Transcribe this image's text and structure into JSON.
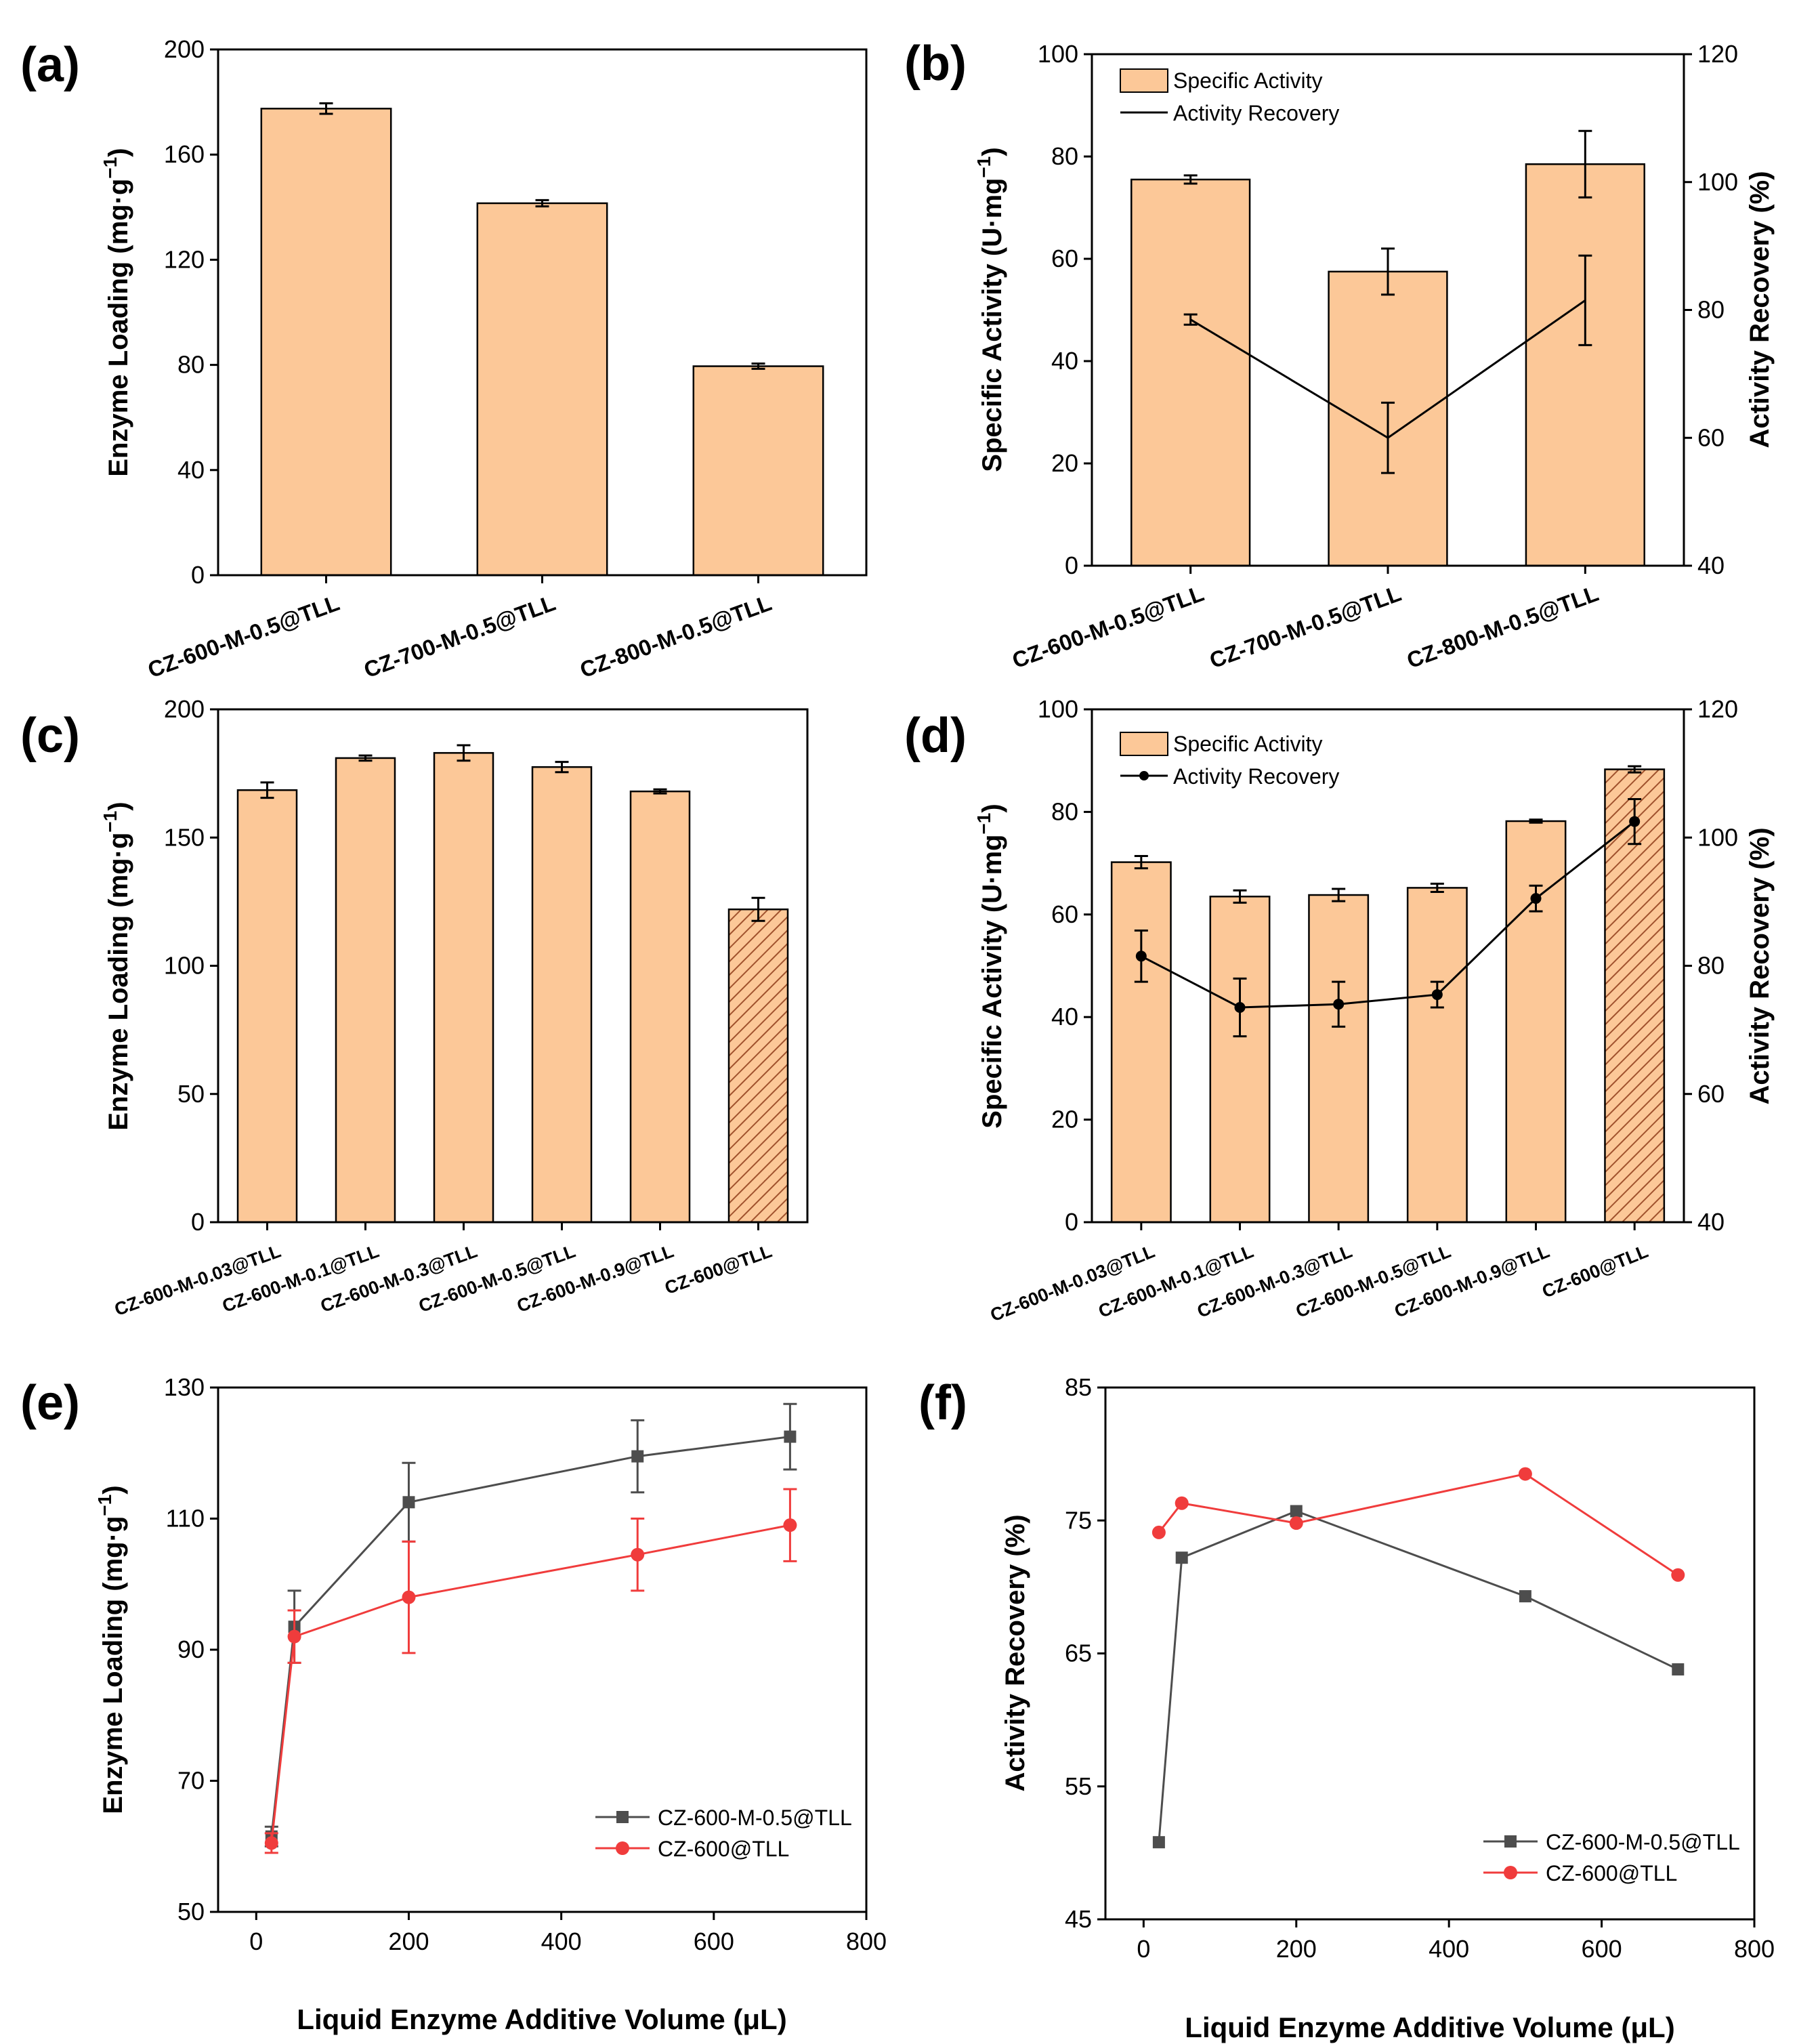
{
  "colors": {
    "bar_fill": "#fcc898",
    "bar_stroke": "#000000",
    "series_gray": "#4d4d4d",
    "series_red": "#f03c3c",
    "line_black": "#000000"
  },
  "chart_data": [
    {
      "panel": "(a)",
      "type": "bar",
      "categories": [
        "CZ-600-M-0.5@TLL",
        "CZ-700-M-0.5@TLL",
        "CZ-800-M-0.5@TLL"
      ],
      "values": [
        177.5,
        141.5,
        79.5
      ],
      "errors": [
        2.0,
        1.2,
        1.0
      ],
      "ylabel": "Enzyme Loading (mg·g⁻¹)",
      "ylim": [
        0,
        200
      ],
      "yticks": [
        "0",
        "40",
        "80",
        "120",
        "160",
        "200"
      ]
    },
    {
      "panel": "(b)",
      "type": "bar",
      "categories": [
        "CZ-600-M-0.5@TLL",
        "CZ-700-M-0.5@TLL",
        "CZ-800-M-0.5@TLL"
      ],
      "series": [
        {
          "name": "Specific Activity",
          "kind": "bar",
          "axis": "left",
          "values": [
            75.5,
            57.5,
            78.5
          ],
          "errors": [
            0.8,
            4.5,
            6.5
          ]
        },
        {
          "name": "Activity Recovery",
          "kind": "line",
          "axis": "right",
          "values": [
            78.5,
            60.0,
            81.5
          ],
          "errors": [
            0.8,
            5.5,
            7.0
          ]
        }
      ],
      "ylabel": "Specific Activity (U·mg⁻¹)",
      "ylabel_right": "Activity Recovery (%)",
      "ylim": [
        0,
        100
      ],
      "ylim_right": [
        40,
        120
      ],
      "yticks": [
        "0",
        "20",
        "40",
        "60",
        "80",
        "100"
      ],
      "yticks_right": [
        "40",
        "60",
        "80",
        "100",
        "120"
      ]
    },
    {
      "panel": "(c)",
      "type": "bar",
      "categories": [
        "CZ-600-M-0.03@TLL",
        "CZ-600-M-0.1@TLL",
        "CZ-600-M-0.3@TLL",
        "CZ-600-M-0.5@TLL",
        "CZ-600-M-0.9@TLL",
        "CZ-600@TLL"
      ],
      "values": [
        168.5,
        181.0,
        183.0,
        177.5,
        168.0,
        122.0
      ],
      "errors": [
        3.0,
        1.0,
        3.0,
        2.0,
        0.8,
        4.5
      ],
      "hatched": [
        false,
        false,
        false,
        false,
        false,
        true
      ],
      "ylabel": "Enzyme Loading (mg·g⁻¹)",
      "ylim": [
        0,
        200
      ],
      "yticks": [
        "0",
        "50",
        "100",
        "150",
        "200"
      ]
    },
    {
      "panel": "(d)",
      "type": "bar",
      "categories": [
        "CZ-600-M-0.03@TLL",
        "CZ-600-M-0.1@TLL",
        "CZ-600-M-0.3@TLL",
        "CZ-600-M-0.5@TLL",
        "CZ-600-M-0.9@TLL",
        "CZ-600@TLL"
      ],
      "series": [
        {
          "name": "Specific Activity",
          "kind": "bar",
          "axis": "left",
          "values": [
            70.2,
            63.5,
            63.8,
            65.2,
            78.2,
            88.3
          ],
          "errors": [
            1.2,
            1.2,
            1.2,
            0.8,
            0.3,
            0.6
          ]
        },
        {
          "name": "Activity Recovery",
          "kind": "line",
          "axis": "right",
          "values": [
            81.5,
            73.5,
            74.0,
            75.5,
            90.5,
            102.5
          ],
          "errors": [
            4.0,
            4.5,
            3.5,
            2.0,
            2.0,
            3.5
          ]
        }
      ],
      "hatched": [
        false,
        false,
        false,
        false,
        false,
        true
      ],
      "ylabel": "Specific Activity (U·mg⁻¹)",
      "ylabel_right": "Activity Recovery (%)",
      "ylim": [
        0,
        100
      ],
      "ylim_right": [
        40,
        120
      ],
      "yticks": [
        "0",
        "20",
        "40",
        "60",
        "80",
        "100"
      ],
      "yticks_right": [
        "40",
        "60",
        "80",
        "100",
        "120"
      ]
    },
    {
      "panel": "(e)",
      "type": "line",
      "x": [
        20,
        50,
        200,
        500,
        700
      ],
      "series": [
        {
          "name": "CZ-600-M-0.5@TLL",
          "marker": "square",
          "values": [
            61.5,
            93.5,
            112.5,
            119.5,
            122.5
          ],
          "errors": [
            1.5,
            5.5,
            6.0,
            5.5,
            5.0
          ]
        },
        {
          "name": "CZ-600@TLL",
          "marker": "circle",
          "values": [
            60.5,
            92.0,
            98.0,
            104.5,
            109.0
          ],
          "errors": [
            1.5,
            4.0,
            8.5,
            5.5,
            5.5
          ]
        }
      ],
      "xlabel": "Liquid Enzyme Additive Volume (μL)",
      "ylabel": "Enzyme Loading (mg·g⁻¹)",
      "xlim": [
        -50,
        800
      ],
      "ylim": [
        50,
        130
      ],
      "xticks": [
        "0",
        "200",
        "400",
        "600",
        "800"
      ],
      "yticks": [
        "50",
        "70",
        "90",
        "110",
        "130"
      ],
      "legend": "bottom-right"
    },
    {
      "panel": "(f)",
      "type": "line",
      "x": [
        20,
        50,
        200,
        500,
        700
      ],
      "series": [
        {
          "name": "CZ-600-M-0.5@TLL",
          "marker": "square",
          "values": [
            50.8,
            72.2,
            75.7,
            69.3,
            63.8
          ]
        },
        {
          "name": "CZ-600@TLL",
          "marker": "circle",
          "values": [
            74.1,
            76.3,
            74.8,
            78.5,
            70.9
          ]
        }
      ],
      "xlabel": "Liquid Enzyme Additive Volume (μL)",
      "ylabel": "Activity Recovery (%)",
      "xlim": [
        -50,
        800
      ],
      "ylim": [
        45,
        85
      ],
      "xticks": [
        "0",
        "200",
        "400",
        "600",
        "800"
      ],
      "yticks": [
        "45",
        "55",
        "65",
        "75",
        "85"
      ],
      "legend": "bottom-right"
    }
  ]
}
